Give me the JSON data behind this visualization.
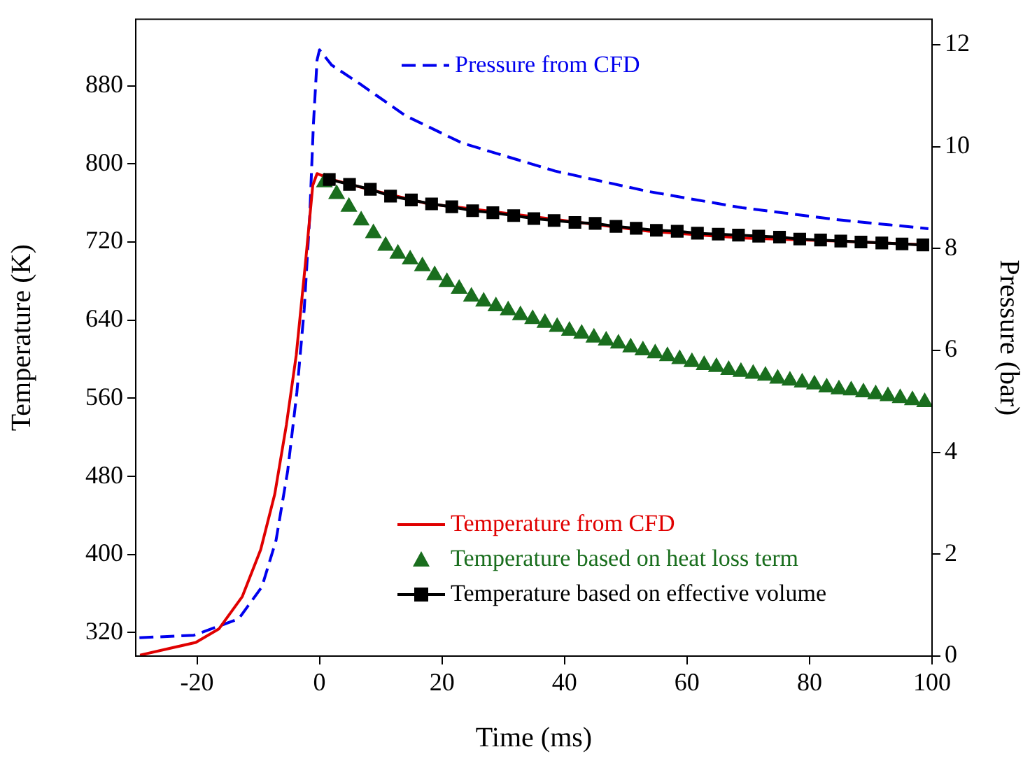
{
  "chart_data": {
    "type": "line",
    "xlabel": "Time (ms)",
    "ylabel": "Temperature (K)",
    "y2label": "Pressure (bar)",
    "xlim": [
      -30,
      100
    ],
    "xticks": [
      -20,
      0,
      20,
      40,
      60,
      80,
      100
    ],
    "ylim": [
      296,
      948
    ],
    "yticks": [
      320,
      400,
      480,
      560,
      640,
      720,
      800,
      880
    ],
    "y2lim": [
      0,
      12.5
    ],
    "y2ticks": [
      0,
      2,
      4,
      6,
      8,
      10,
      12
    ],
    "grid": false,
    "legend": "right",
    "series": [
      {
        "name": "Pressure from CFD",
        "type": "line",
        "axis": "y2",
        "color": "#0000ee",
        "line_style": "dashed",
        "marker": "none",
        "x": [
          -29.4,
          -20.5,
          -13.2,
          -9.4,
          -7.1,
          -5.2,
          -3.7,
          -2.5,
          -1.6,
          -1.0,
          -0.4,
          0.0,
          2,
          6.4,
          14,
          23.3,
          38.5,
          53.7,
          69,
          84.2,
          99.4
        ],
        "values": [
          0.36,
          0.41,
          0.73,
          1.36,
          2.27,
          3.63,
          5.17,
          6.8,
          8.62,
          10.43,
          11.7,
          11.9,
          11.6,
          11.25,
          10.61,
          10.07,
          9.52,
          9.12,
          8.8,
          8.57,
          8.39
        ]
      },
      {
        "name": "Temperature from CFD",
        "type": "line",
        "color": "#e00000",
        "line_style": "solid",
        "marker": "none",
        "x": [
          -29.3,
          -20.2,
          -16.4,
          -12.6,
          -9.6,
          -7.3,
          -5.4,
          -3.8,
          -2.3,
          -1.1,
          -0.4,
          2,
          8,
          17.8,
          23.3,
          38.5,
          53.7,
          69,
          84.2,
          99.4
        ],
        "values": [
          297,
          310,
          324,
          357,
          405,
          462,
          533,
          604,
          698,
          778,
          790,
          784,
          774,
          759,
          755,
          743,
          731,
          724,
          721,
          717
        ]
      },
      {
        "name": "Temperature based on heat loss term",
        "type": "scatter",
        "color": "#1a6e1e",
        "marker": "triangle",
        "x": [
          0.8,
          2.8,
          4.8,
          6.8,
          8.8,
          10.8,
          12.8,
          14.8,
          16.8,
          18.8,
          20.8,
          22.8,
          24.8,
          26.8,
          28.8,
          30.8,
          32.8,
          34.8,
          36.8,
          38.8,
          40.8,
          42.8,
          44.8,
          46.8,
          48.8,
          50.8,
          52.8,
          54.8,
          56.8,
          58.8,
          60.8,
          62.8,
          64.8,
          66.8,
          68.8,
          70.8,
          72.8,
          74.8,
          76.8,
          78.8,
          80.8,
          82.8,
          84.8,
          86.8,
          88.8,
          90.8,
          92.8,
          94.8,
          96.8,
          98.8
        ],
        "values": [
          781,
          769,
          756,
          742,
          729,
          716,
          708,
          702,
          695,
          686,
          679,
          672,
          664,
          659,
          654,
          650,
          645,
          641,
          637,
          633,
          629,
          626,
          622,
          619,
          616,
          612,
          609,
          606,
          603,
          600,
          597,
          594,
          592,
          589,
          587,
          585,
          583,
          580,
          578,
          576,
          574,
          571,
          569,
          568,
          566,
          564,
          562,
          560,
          558,
          556
        ]
      },
      {
        "name": "Temperature based on effective volume",
        "type": "line",
        "color": "#000000",
        "line_style": "solid",
        "marker": "square",
        "x": [
          1.6,
          4.9,
          8.3,
          11.6,
          15.0,
          18.3,
          21.6,
          25.0,
          28.3,
          31.7,
          35.0,
          38.3,
          41.7,
          45.0,
          48.4,
          51.7,
          55.0,
          58.4,
          61.7,
          65.1,
          68.4,
          71.7,
          75.1,
          78.4,
          81.8,
          85.1,
          88.4,
          91.8,
          95.1,
          98.5
        ],
        "values": [
          784,
          779,
          774,
          767,
          763,
          759,
          756,
          752,
          750,
          747,
          744,
          742,
          740,
          739,
          736,
          734,
          732,
          731,
          729,
          728,
          727,
          726,
          725,
          723,
          722,
          721,
          720,
          719,
          718,
          717
        ]
      }
    ]
  }
}
